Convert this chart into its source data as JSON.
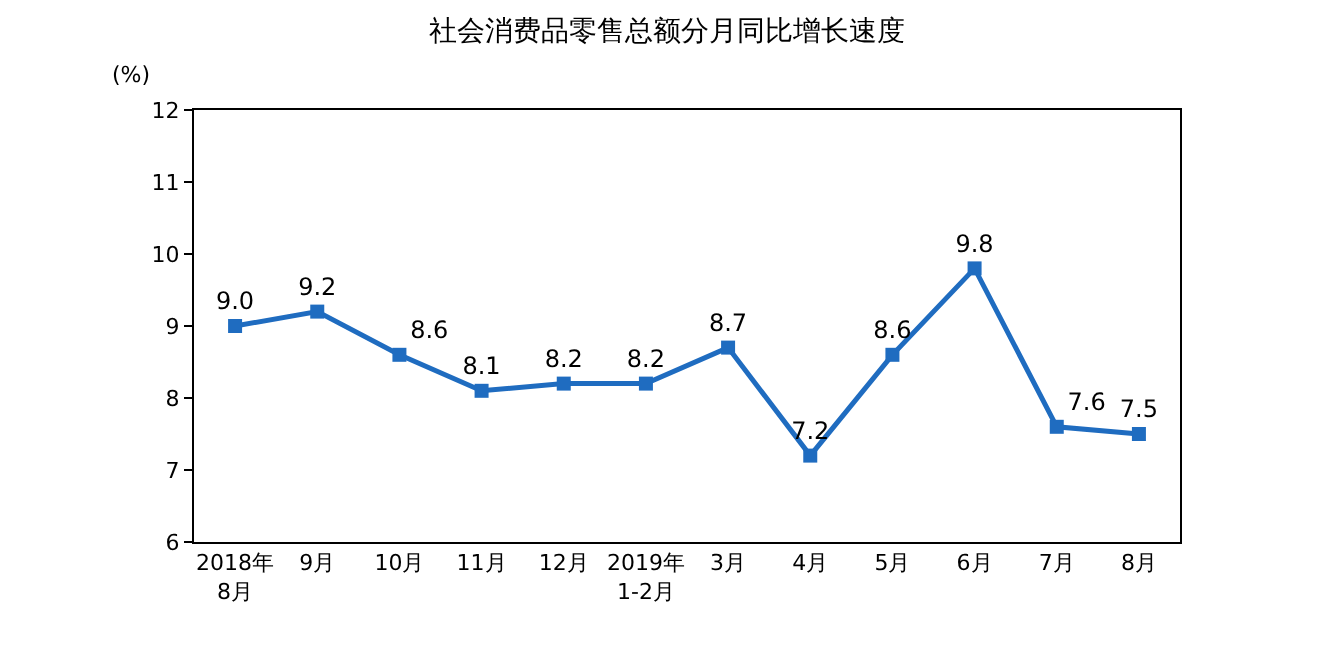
{
  "chart_data": {
    "type": "line",
    "title": "社会消费品零售总额分月同比增长速度",
    "ylabel": "(%)",
    "categories": [
      "2018年\n8月",
      "9月",
      "10月",
      "11月",
      "12月",
      "2019年\n1-2月",
      "3月",
      "4月",
      "5月",
      "6月",
      "7月",
      "8月"
    ],
    "series": [
      {
        "color": "#1f6cc0",
        "values": [
          9.0,
          9.2,
          8.6,
          8.1,
          8.2,
          8.2,
          8.7,
          7.2,
          8.6,
          9.8,
          7.6,
          7.5
        ]
      }
    ],
    "value_labels": [
      "9.0",
      "9.2",
      "8.6",
      "8.1",
      "8.2",
      "8.2",
      "8.7",
      "7.2",
      "8.6",
      "9.8",
      "7.6",
      "7.5"
    ],
    "ylim": [
      6,
      12
    ],
    "yticks": [
      6,
      7,
      8,
      9,
      10,
      11,
      12
    ],
    "grid": false,
    "marker": "square",
    "line_style": "solid"
  }
}
